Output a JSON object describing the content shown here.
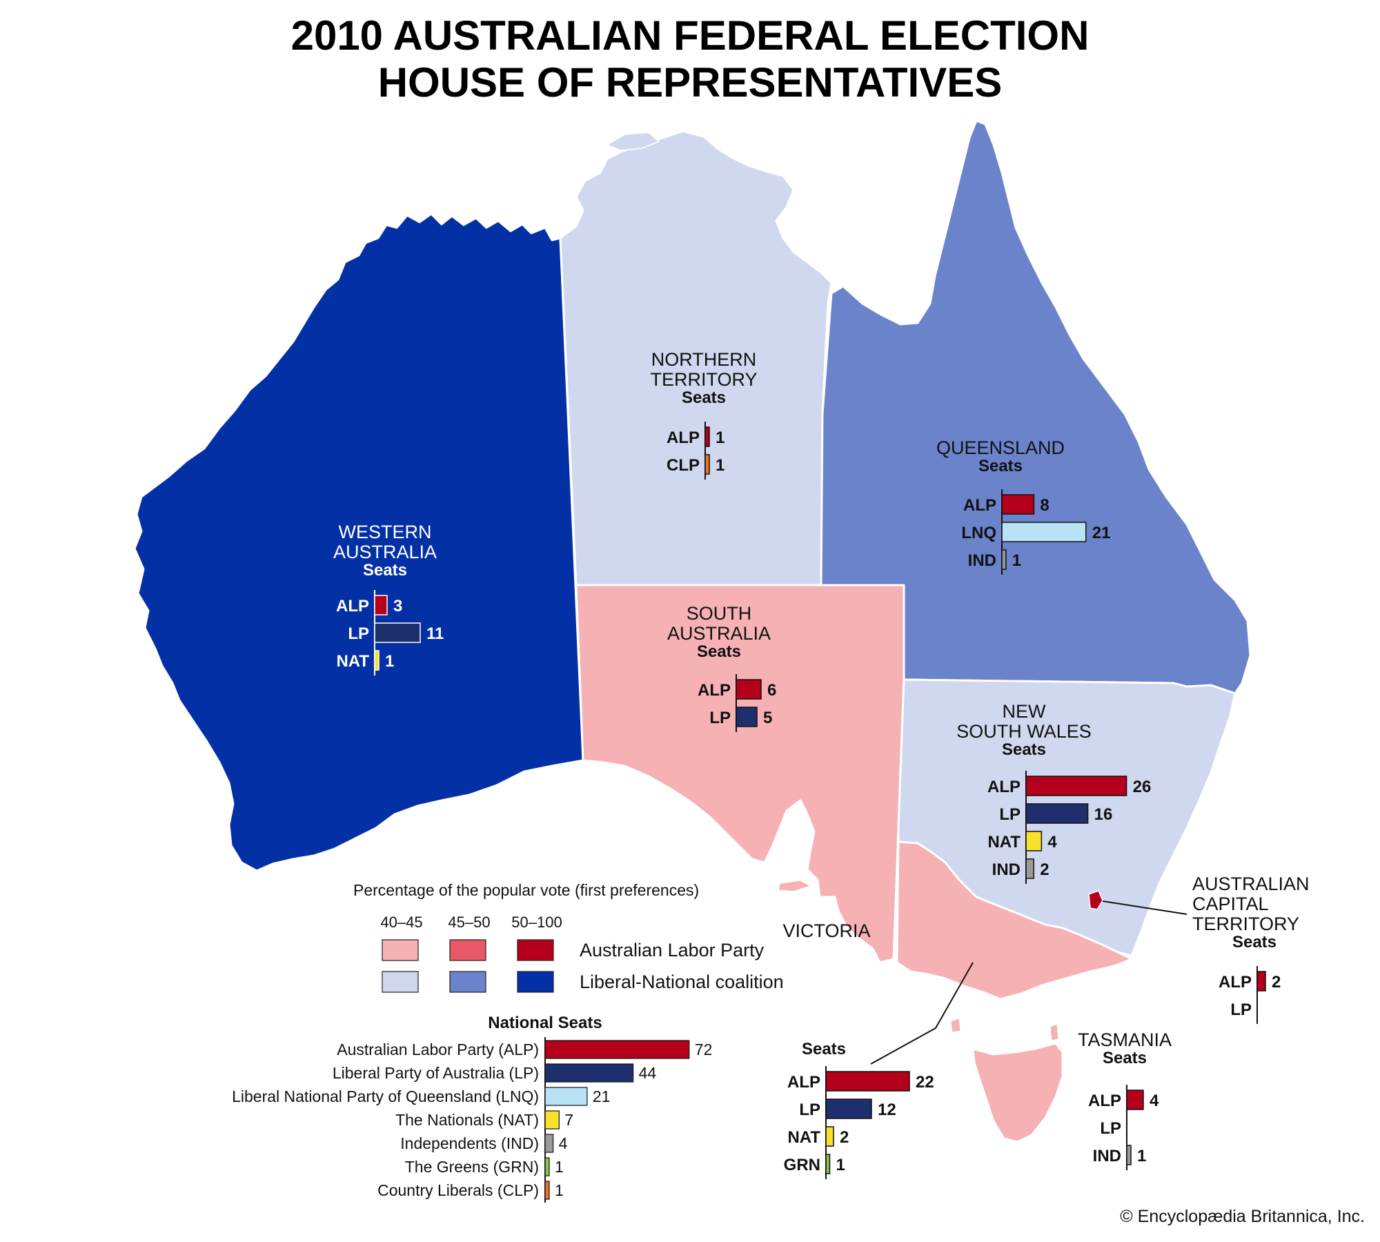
{
  "title": {
    "line1": "2010 AUSTRALIAN FEDERAL ELECTION",
    "line2": "HOUSE OF REPRESENTATIVES"
  },
  "colors": {
    "alp_40_45": "#f5b1b4",
    "alp_45_50": "#e85866",
    "alp_50_100": "#b5001b",
    "coal_40_45": "#cfd8ee",
    "coal_45_50": "#6a83cb",
    "coal_50_100": "#0430a6",
    "ALP": "#b5001b",
    "LP": "#1e2f6e",
    "LNQ": "#b8e3f7",
    "NAT": "#f7e02e",
    "IND": "#9a9a9a",
    "GRN": "#8cc152",
    "CLP": "#e8732e"
  },
  "states": [
    {
      "id": "wa",
      "name": [
        "WESTERN",
        "AUSTRALIA"
      ],
      "seats_label": "Seats",
      "fill": "#0430a6",
      "text_color": "#ffffff",
      "seats": [
        {
          "party": "ALP",
          "value": 3
        },
        {
          "party": "LP",
          "value": 11
        },
        {
          "party": "NAT",
          "value": 1
        }
      ]
    },
    {
      "id": "nt",
      "name": [
        "NORTHERN",
        "TERRITORY"
      ],
      "seats_label": "Seats",
      "fill": "#cfd8ee",
      "text_color": "#111111",
      "seats": [
        {
          "party": "ALP",
          "value": 1
        },
        {
          "party": "CLP",
          "value": 1
        }
      ]
    },
    {
      "id": "qld",
      "name": [
        "QUEENSLAND"
      ],
      "seats_label": "Seats",
      "fill": "#6a83cb",
      "text_color": "#111111",
      "seats": [
        {
          "party": "ALP",
          "value": 8
        },
        {
          "party": "LNQ",
          "value": 21
        },
        {
          "party": "IND",
          "value": 1
        }
      ]
    },
    {
      "id": "sa",
      "name": [
        "SOUTH",
        "AUSTRALIA"
      ],
      "seats_label": "Seats",
      "fill": "#f5b1b4",
      "text_color": "#111111",
      "seats": [
        {
          "party": "ALP",
          "value": 6
        },
        {
          "party": "LP",
          "value": 5
        }
      ]
    },
    {
      "id": "nsw",
      "name": [
        "NEW",
        "SOUTH WALES"
      ],
      "seats_label": "Seats",
      "fill": "#cfd8ee",
      "text_color": "#111111",
      "seats": [
        {
          "party": "ALP",
          "value": 26
        },
        {
          "party": "LP",
          "value": 16
        },
        {
          "party": "NAT",
          "value": 4
        },
        {
          "party": "IND",
          "value": 2
        }
      ]
    },
    {
      "id": "act",
      "name": [
        "AUSTRALIAN",
        "CAPITAL",
        "TERRITORY"
      ],
      "seats_label": "Seats",
      "fill": "#b5001b",
      "text_color": "#111111",
      "seats": [
        {
          "party": "ALP",
          "value": 2
        },
        {
          "party": "LP",
          "value": 0
        }
      ]
    },
    {
      "id": "vic",
      "name": [
        "VICTORIA"
      ],
      "seats_label": "Seats",
      "fill": "#f5b1b4",
      "text_color": "#111111",
      "seats": [
        {
          "party": "ALP",
          "value": 22
        },
        {
          "party": "LP",
          "value": 12
        },
        {
          "party": "NAT",
          "value": 2
        },
        {
          "party": "GRN",
          "value": 1
        }
      ]
    },
    {
      "id": "tas",
      "name": [
        "TASMANIA"
      ],
      "seats_label": "Seats",
      "fill": "#f5b1b4",
      "text_color": "#111111",
      "seats": [
        {
          "party": "ALP",
          "value": 4
        },
        {
          "party": "LP",
          "value": 0
        },
        {
          "party": "IND",
          "value": 1
        }
      ]
    }
  ],
  "legend": {
    "title": "Percentage of the popular vote (first preferences)",
    "ranges": [
      "40–45",
      "45–50",
      "50–100"
    ],
    "rows": [
      {
        "label": "Australian Labor Party",
        "colors": [
          "#f5b1b4",
          "#e85866",
          "#b5001b"
        ]
      },
      {
        "label": "Liberal-National coalition",
        "colors": [
          "#cfd8ee",
          "#6a83cb",
          "#0430a6"
        ]
      }
    ]
  },
  "national": {
    "title": "National Seats",
    "parties": [
      {
        "name": "Australian Labor Party (ALP)",
        "code": "ALP",
        "value": 72
      },
      {
        "name": "Liberal Party of Australia (LP)",
        "code": "LP",
        "value": 44
      },
      {
        "name": "Liberal National Party of Queensland (LNQ)",
        "code": "LNQ",
        "value": 21
      },
      {
        "name": "The Nationals (NAT)",
        "code": "NAT",
        "value": 7
      },
      {
        "name": "Independents (IND)",
        "code": "IND",
        "value": 4
      },
      {
        "name": "The Greens (GRN)",
        "code": "GRN",
        "value": 1
      },
      {
        "name": "Country Liberals (CLP)",
        "code": "CLP",
        "value": 1
      }
    ]
  },
  "credit": "© Encyclopædia Britannica, Inc."
}
